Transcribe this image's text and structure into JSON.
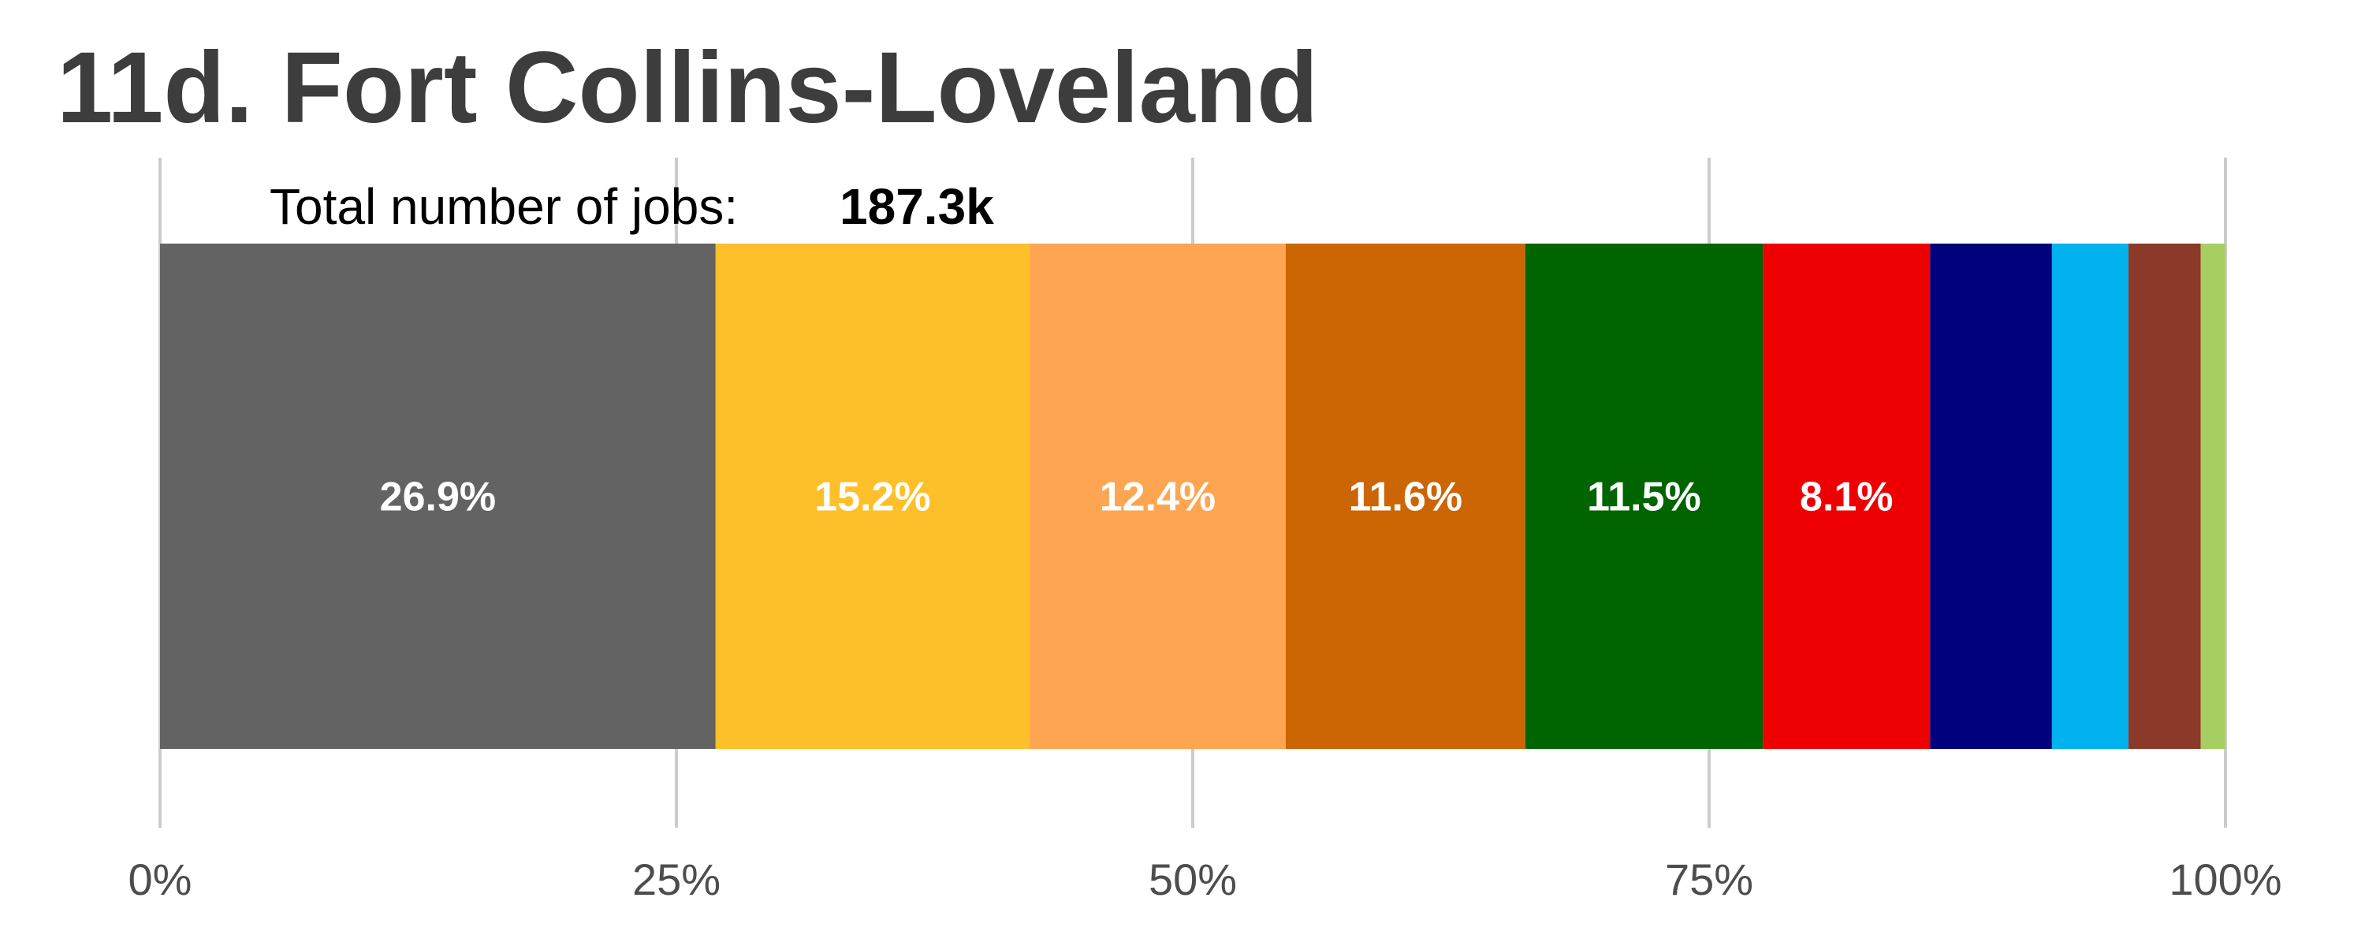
{
  "chart_data": {
    "type": "bar",
    "orientation": "horizontal",
    "stacked": true,
    "title": "11d. Fort Collins-Loveland",
    "total_label": "Total number of jobs:",
    "total_value": "187.3k",
    "xlim": [
      0,
      100
    ],
    "x_ticks": [
      {
        "value": 0,
        "label": "0%"
      },
      {
        "value": 25,
        "label": "25%"
      },
      {
        "value": 50,
        "label": "50%"
      },
      {
        "value": 75,
        "label": "75%"
      },
      {
        "value": 100,
        "label": "100%"
      }
    ],
    "grid": true,
    "segments": [
      {
        "value": 26.9,
        "label": "26.9%",
        "color": "#636363"
      },
      {
        "value": 15.2,
        "label": "15.2%",
        "color": "#FEC02A"
      },
      {
        "value": 12.4,
        "label": "12.4%",
        "color": "#FEA551"
      },
      {
        "value": 11.6,
        "label": "11.6%",
        "color": "#CC6504"
      },
      {
        "value": 11.5,
        "label": "11.5%",
        "color": "#006401"
      },
      {
        "value": 8.1,
        "label": "8.1%",
        "color": "#EE0002"
      },
      {
        "value": 5.9,
        "label": "",
        "color": "#01017D"
      },
      {
        "value": 3.7,
        "label": "",
        "color": "#00B2EE"
      },
      {
        "value": 3.5,
        "label": "",
        "color": "#8B3A2A"
      },
      {
        "value": 1.3,
        "label": "",
        "color": "#A6CE61"
      }
    ]
  }
}
